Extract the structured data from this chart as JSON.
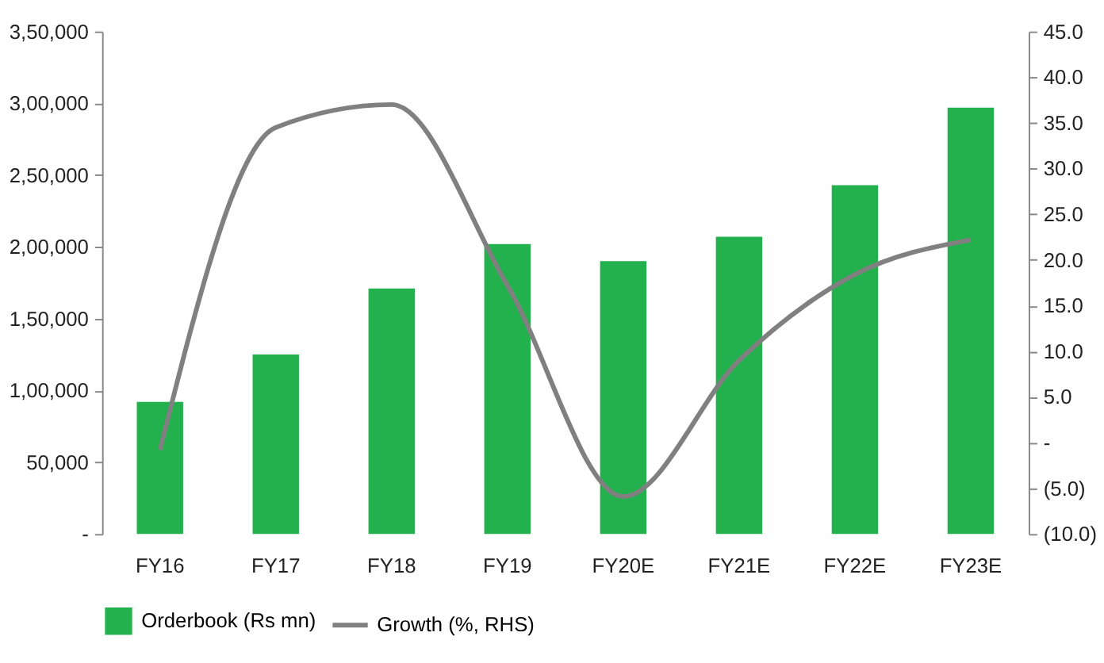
{
  "chart_data": {
    "type": "bar",
    "categories": [
      "FY16",
      "FY17",
      "FY18",
      "FY19",
      "FY20E",
      "FY21E",
      "FY22E",
      "FY23E"
    ],
    "series": [
      {
        "name": "Orderbook (Rs mn)",
        "color": "#22b14c",
        "values": [
          92000,
          125000,
          171000,
          202000,
          190000,
          207000,
          243000,
          297000
        ]
      },
      {
        "name": "Growth (%, RHS)",
        "type": "line",
        "axis": "y2",
        "color": "#808080",
        "values": [
          -0.8,
          34.5,
          37.0,
          17.2,
          -5.9,
          9.0,
          18.4,
          22.2
        ]
      }
    ],
    "ylim": [
      0,
      350000
    ],
    "yticks": [
      {
        "value": 0,
        "label": "-"
      },
      {
        "value": 50000,
        "label": "50,000"
      },
      {
        "value": 100000,
        "label": "1,00,000"
      },
      {
        "value": 150000,
        "label": "1,50,000"
      },
      {
        "value": 200000,
        "label": "2,00,000"
      },
      {
        "value": 250000,
        "label": "2,50,000"
      },
      {
        "value": 300000,
        "label": "3,00,000"
      },
      {
        "value": 350000,
        "label": "3,50,000"
      }
    ],
    "y2lim": [
      -10,
      45
    ],
    "y2ticks": [
      {
        "value": -10,
        "label": "(10.0)"
      },
      {
        "value": -5,
        "label": "(5.0)"
      },
      {
        "value": 0,
        "label": "-"
      },
      {
        "value": 5,
        "label": "5.0"
      },
      {
        "value": 10,
        "label": "10.0"
      },
      {
        "value": 15,
        "label": "15.0"
      },
      {
        "value": 20,
        "label": "20.0"
      },
      {
        "value": 25,
        "label": "25.0"
      },
      {
        "value": 30,
        "label": "30.0"
      },
      {
        "value": 35,
        "label": "35.0"
      },
      {
        "value": 40,
        "label": "40.0"
      },
      {
        "value": 45,
        "label": "45.0"
      }
    ],
    "legend": "bottom",
    "grid": false
  }
}
